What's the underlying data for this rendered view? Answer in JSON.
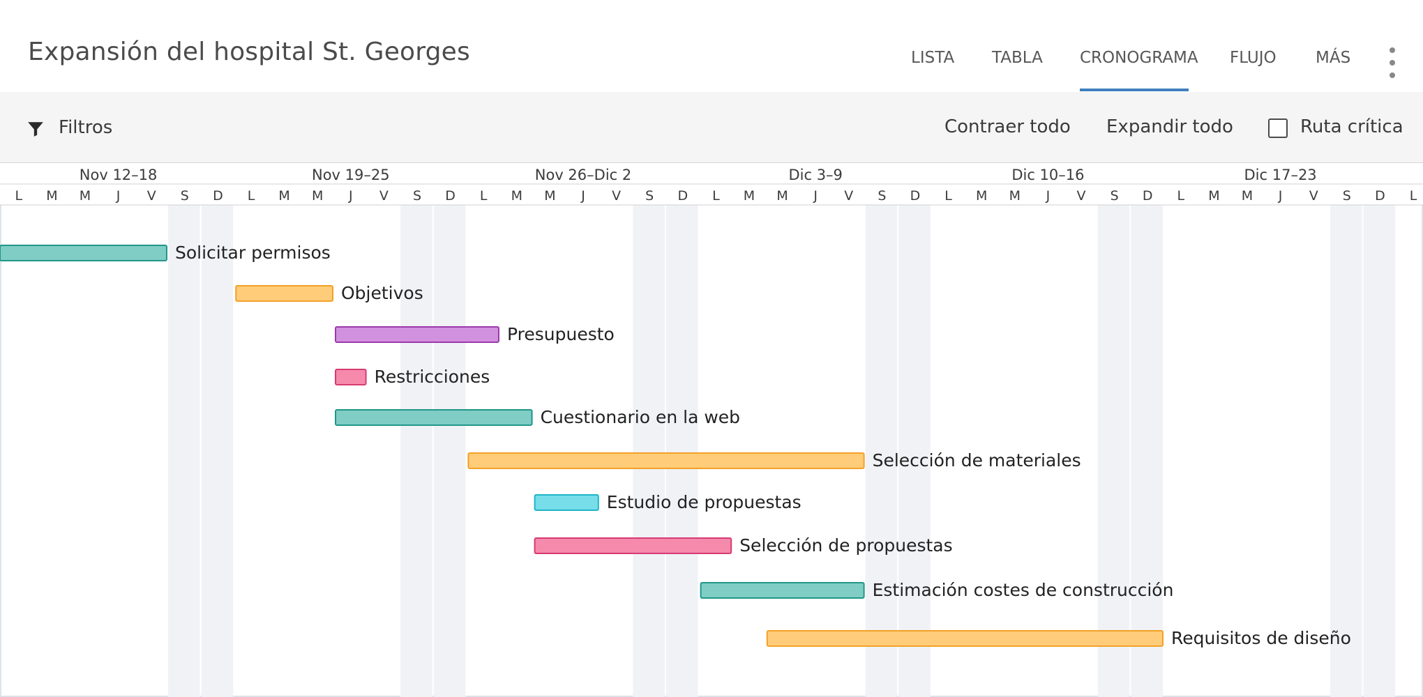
{
  "app": {
    "title": "Expansión del hospital St. Georges"
  },
  "tabs": [
    {
      "label": "LISTA",
      "active": false
    },
    {
      "label": "TABLA",
      "active": false
    },
    {
      "label": "CRONOGRAMA",
      "active": true
    },
    {
      "label": "FLUJO",
      "active": false
    },
    {
      "label": "MÁS",
      "active": false
    }
  ],
  "toolbar": {
    "filters_label": "Filtros",
    "collapse_label": "Contraer todo",
    "expand_label": "Expandir todo",
    "critical_path_label": "Ruta crítica",
    "critical_path_checked": false
  },
  "icons": {
    "filter": "filter-funnel-icon",
    "more": "more-vertical-icon",
    "checkbox": "checkbox-icon"
  },
  "colors": {
    "accent": "#3f7fbf",
    "weekend_shade": "#f0f2f6"
  },
  "weeks": [
    "Nov 12–18",
    "Nov 19–25",
    "Nov 26–Dic 2",
    "Dic 3–9",
    "Dic 10–16",
    "Dic 17–23"
  ],
  "day_letters": [
    "L",
    "M",
    "M",
    "J",
    "V",
    "S",
    "D",
    "L",
    "M",
    "M",
    "J",
    "V",
    "S",
    "D",
    "L",
    "M",
    "M",
    "J",
    "V",
    "S",
    "D",
    "L",
    "M",
    "M",
    "J",
    "V",
    "S",
    "D",
    "L",
    "M",
    "M",
    "J",
    "V",
    "S",
    "D",
    "L",
    "M",
    "M",
    "J",
    "V",
    "S",
    "D",
    "L"
  ],
  "tasks": [
    {
      "name": "Solicitar permisos",
      "start": "Nov 12",
      "end": "Nov 16",
      "fill": "#7fcdc4",
      "stroke": "#21968a"
    },
    {
      "name": "Objetivos",
      "start": "Nov 19",
      "end": "Nov 21",
      "fill": "#ffcc7a",
      "stroke": "#f2a127"
    },
    {
      "name": "Presupuesto",
      "start": "Nov 22",
      "end": "Nov 26",
      "fill": "#d291de",
      "stroke": "#9a3aab"
    },
    {
      "name": "Restricciones",
      "start": "Nov 22",
      "end": "Nov 22",
      "fill": "#f58aad",
      "stroke": "#d63b72"
    },
    {
      "name": "Cuestionario en la web",
      "start": "Nov 22",
      "end": "Nov 27",
      "fill": "#7fcdc4",
      "stroke": "#21968a"
    },
    {
      "name": "Selección de materiales",
      "start": "Nov 26",
      "end": "Dic 7",
      "fill": "#ffcc7a",
      "stroke": "#f2a127"
    },
    {
      "name": "Estudio de propuestas",
      "start": "Nov 28",
      "end": "Nov 29",
      "fill": "#77dde9",
      "stroke": "#1eb5c8"
    },
    {
      "name": "Selección de propuestas",
      "start": "Nov 28",
      "end": "Dic 3",
      "fill": "#f58aad",
      "stroke": "#d63b72"
    },
    {
      "name": "Estimación costes de construcción",
      "start": "Dic 3",
      "end": "Dic 7",
      "fill": "#7fcdc4",
      "stroke": "#21968a"
    },
    {
      "name": "Requisitos de diseño",
      "start": "Dic 5",
      "end": "Dic 16",
      "fill": "#ffcc7a",
      "stroke": "#f2a127"
    }
  ]
}
